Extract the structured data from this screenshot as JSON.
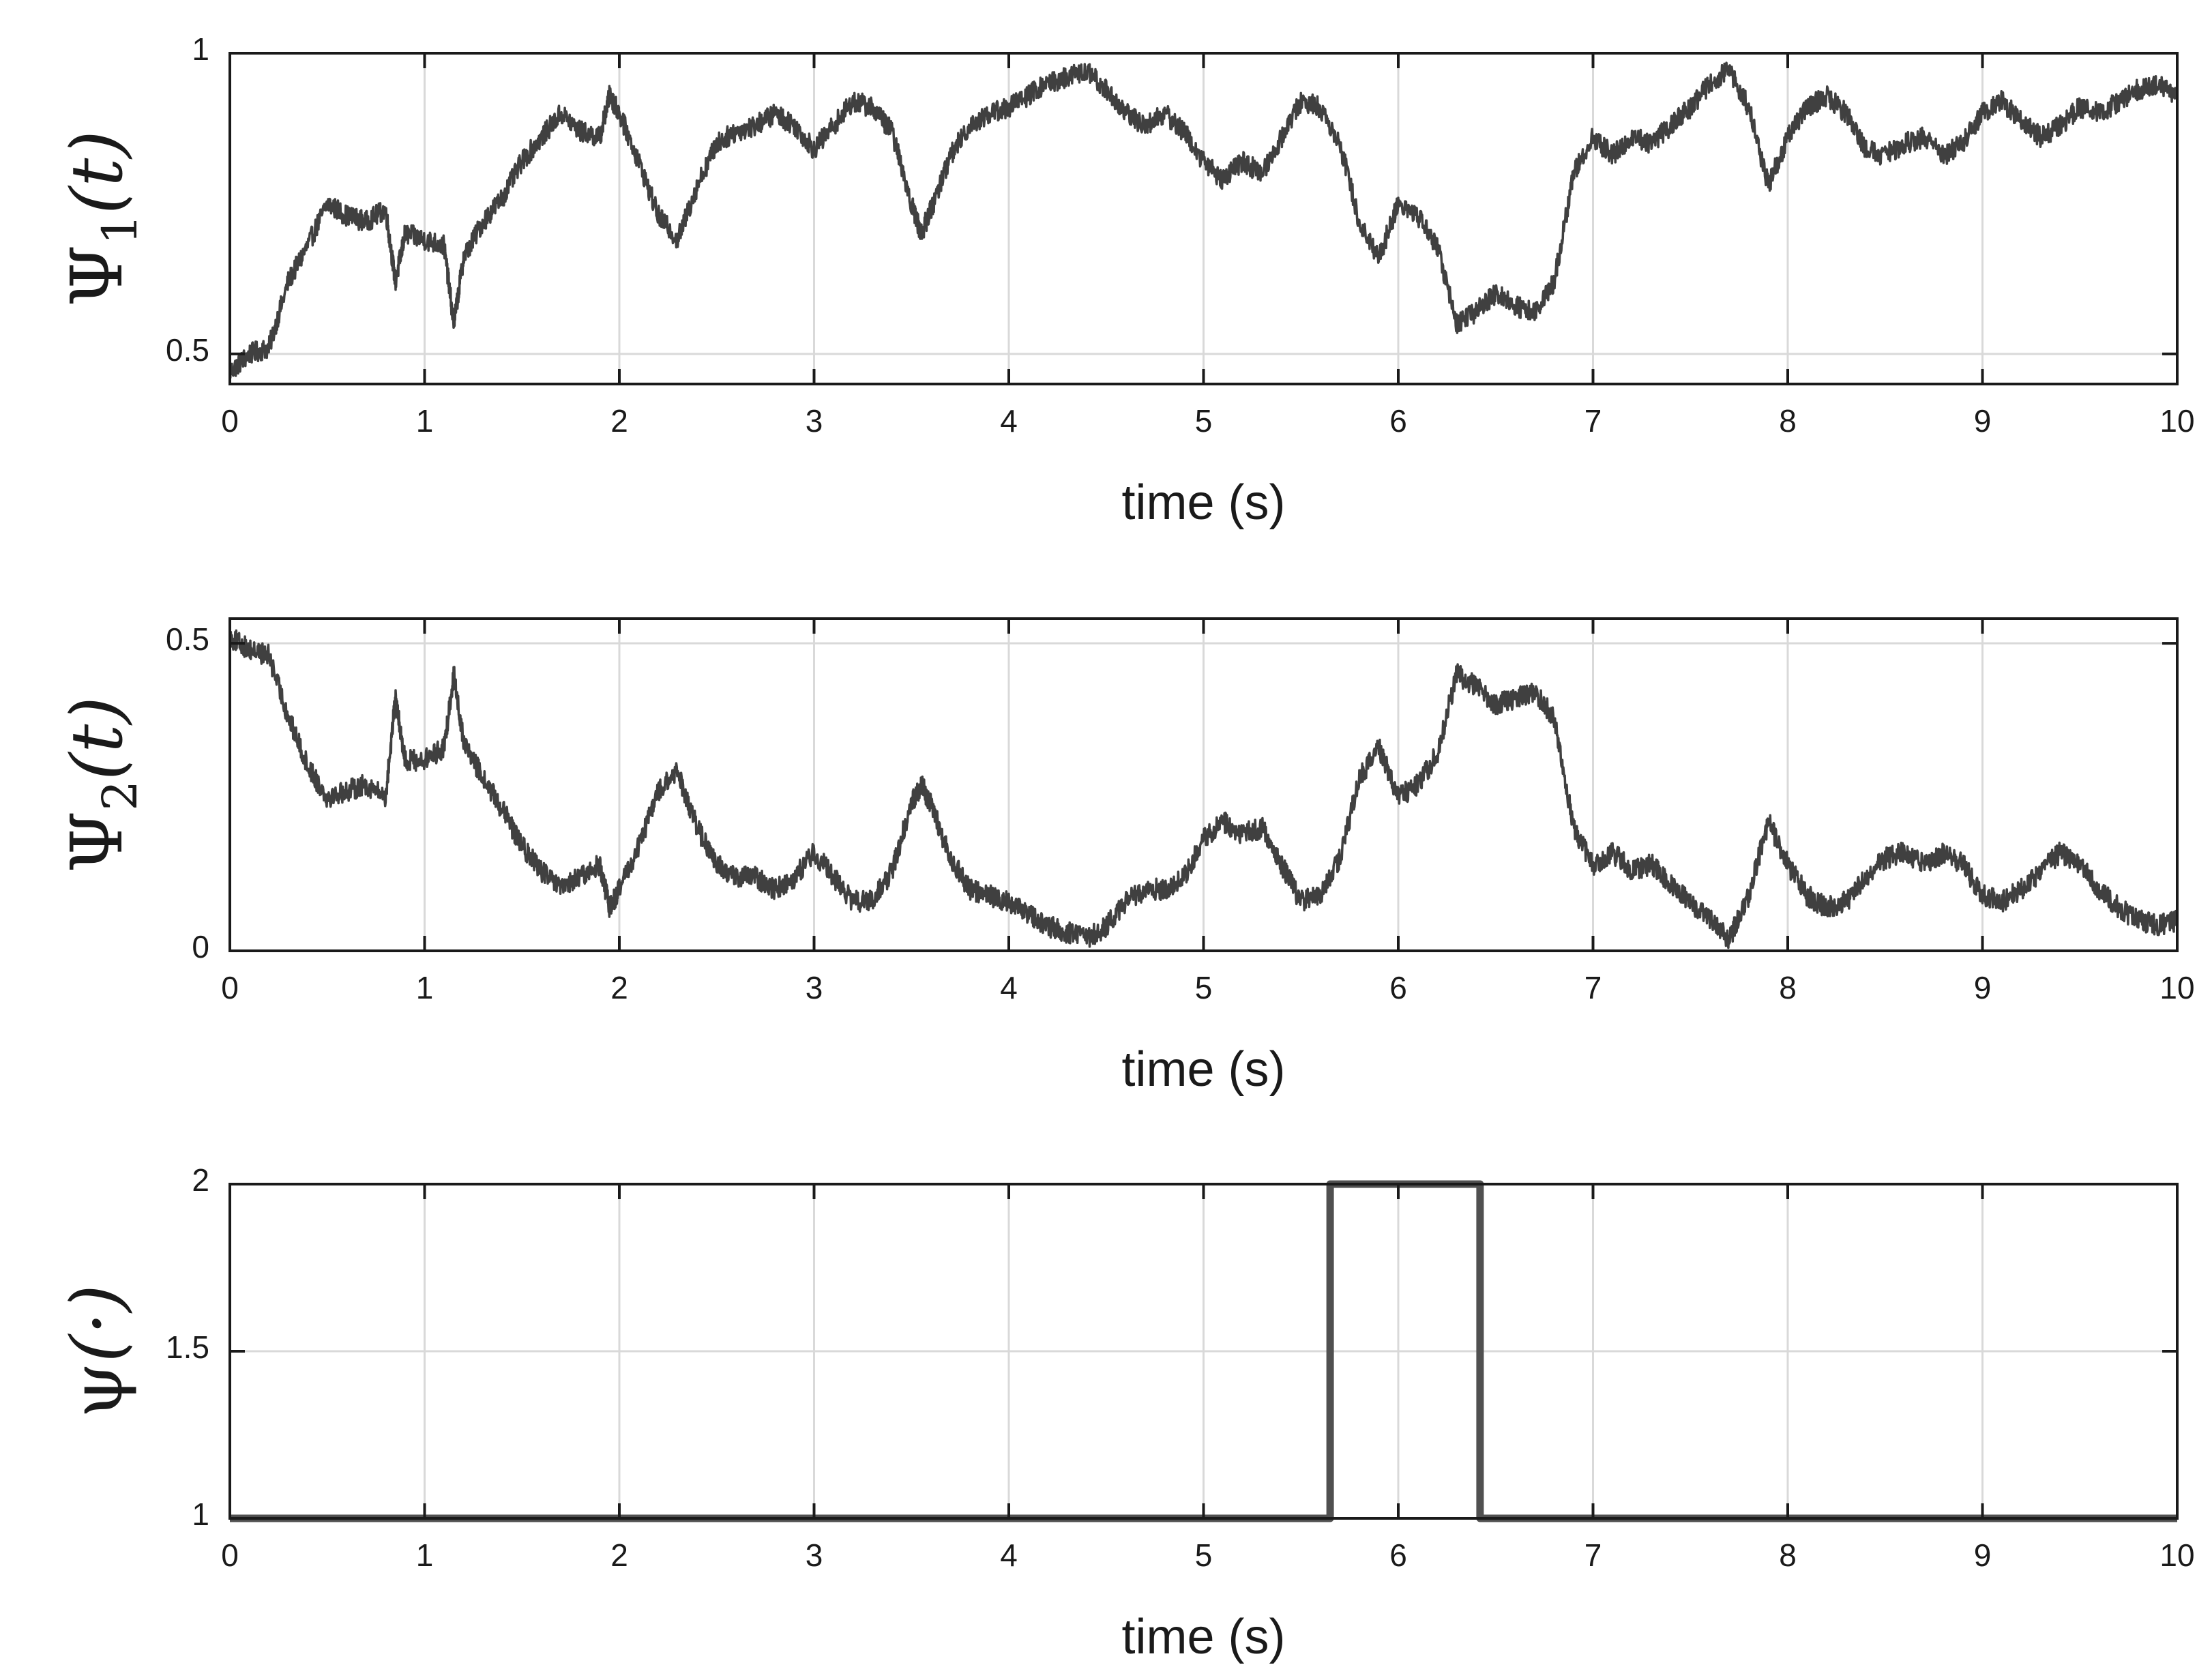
{
  "chart_data": [
    {
      "type": "line",
      "ylabel": "Ψ1(t)",
      "ylabel_main": "Ψ",
      "ylabel_sub": "1",
      "ylabel_arg": "(t)",
      "xlabel": "time (s)",
      "xlim": [
        0,
        10
      ],
      "ylim": [
        0.45,
        1
      ],
      "xticks": [
        "0",
        "1",
        "2",
        "3",
        "4",
        "5",
        "6",
        "7",
        "8",
        "9",
        "10"
      ],
      "yticks": [
        "0.5",
        "1"
      ],
      "ytick_values": [
        0.5,
        1
      ],
      "grid": true,
      "color": "#404040",
      "series": [
        {
          "x": [
            0,
            0.1,
            0.2,
            0.3,
            0.4,
            0.5,
            0.6,
            0.7,
            0.8,
            0.85,
            0.9,
            1.0,
            1.1,
            1.15,
            1.2,
            1.3,
            1.4,
            1.5,
            1.6,
            1.7,
            1.8,
            1.9,
            1.95,
            2.0,
            2.1,
            2.2,
            2.3,
            2.4,
            2.5,
            2.6,
            2.7,
            2.8,
            2.9,
            3.0,
            3.1,
            3.2,
            3.3,
            3.4,
            3.5,
            3.55,
            3.6,
            3.7,
            3.8,
            3.9,
            4.0,
            4.1,
            4.2,
            4.3,
            4.4,
            4.5,
            4.6,
            4.7,
            4.8,
            4.9,
            5.0,
            5.1,
            5.2,
            5.3,
            5.4,
            5.5,
            5.6,
            5.7,
            5.8,
            5.9,
            6.0,
            6.1,
            6.2,
            6.3,
            6.4,
            6.5,
            6.6,
            6.7,
            6.8,
            6.9,
            7.0,
            7.1,
            7.2,
            7.3,
            7.4,
            7.5,
            7.6,
            7.7,
            7.8,
            7.9,
            8.0,
            8.1,
            8.2,
            8.3,
            8.4,
            8.5,
            8.6,
            8.7,
            8.8,
            8.9,
            9.0,
            9.1,
            9.2,
            9.3,
            9.4,
            9.5,
            9.6,
            9.7,
            9.8,
            9.9,
            10.0
          ],
          "y": [
            0.47,
            0.5,
            0.51,
            0.62,
            0.68,
            0.75,
            0.73,
            0.72,
            0.74,
            0.62,
            0.7,
            0.69,
            0.68,
            0.55,
            0.66,
            0.72,
            0.76,
            0.82,
            0.86,
            0.9,
            0.87,
            0.86,
            0.93,
            0.9,
            0.82,
            0.73,
            0.69,
            0.78,
            0.85,
            0.87,
            0.88,
            0.9,
            0.88,
            0.84,
            0.88,
            0.92,
            0.91,
            0.87,
            0.75,
            0.7,
            0.74,
            0.83,
            0.88,
            0.9,
            0.91,
            0.93,
            0.95,
            0.96,
            0.97,
            0.94,
            0.9,
            0.88,
            0.9,
            0.87,
            0.82,
            0.79,
            0.82,
            0.8,
            0.86,
            0.92,
            0.91,
            0.85,
            0.72,
            0.66,
            0.75,
            0.73,
            0.68,
            0.55,
            0.57,
            0.6,
            0.58,
            0.57,
            0.62,
            0.8,
            0.86,
            0.83,
            0.86,
            0.85,
            0.88,
            0.91,
            0.95,
            0.97,
            0.91,
            0.78,
            0.86,
            0.91,
            0.93,
            0.9,
            0.84,
            0.83,
            0.85,
            0.86,
            0.83,
            0.85,
            0.9,
            0.92,
            0.89,
            0.86,
            0.88,
            0.91,
            0.9,
            0.92,
            0.94,
            0.95,
            0.93
          ]
        }
      ]
    },
    {
      "type": "line",
      "ylabel": "Ψ2(t)",
      "ylabel_main": "Ψ",
      "ylabel_sub": "2",
      "ylabel_arg": "(t)",
      "xlabel": "time (s)",
      "xlim": [
        0,
        10
      ],
      "ylim": [
        0,
        0.54
      ],
      "xticks": [
        "0",
        "1",
        "2",
        "3",
        "4",
        "5",
        "6",
        "7",
        "8",
        "9",
        "10"
      ],
      "yticks": [
        "0",
        "0.5"
      ],
      "ytick_values": [
        0,
        0.5
      ],
      "grid": true,
      "color": "#404040",
      "series": [
        {
          "x": [
            0,
            0.1,
            0.2,
            0.3,
            0.4,
            0.5,
            0.6,
            0.7,
            0.8,
            0.85,
            0.9,
            1.0,
            1.1,
            1.15,
            1.2,
            1.3,
            1.4,
            1.5,
            1.6,
            1.7,
            1.8,
            1.9,
            1.95,
            2.0,
            2.1,
            2.2,
            2.3,
            2.4,
            2.5,
            2.6,
            2.7,
            2.8,
            2.9,
            3.0,
            3.1,
            3.2,
            3.3,
            3.4,
            3.5,
            3.55,
            3.6,
            3.7,
            3.8,
            3.9,
            4.0,
            4.1,
            4.2,
            4.3,
            4.4,
            4.5,
            4.6,
            4.7,
            4.8,
            4.9,
            5.0,
            5.1,
            5.2,
            5.3,
            5.4,
            5.5,
            5.6,
            5.7,
            5.8,
            5.9,
            6.0,
            6.1,
            6.2,
            6.3,
            6.4,
            6.5,
            6.6,
            6.7,
            6.8,
            6.9,
            7.0,
            7.1,
            7.2,
            7.3,
            7.4,
            7.5,
            7.6,
            7.7,
            7.8,
            7.9,
            8.0,
            8.1,
            8.2,
            8.3,
            8.4,
            8.5,
            8.6,
            8.7,
            8.8,
            8.9,
            9.0,
            9.1,
            9.2,
            9.3,
            9.4,
            9.5,
            9.6,
            9.7,
            9.8,
            9.9,
            10.0
          ],
          "y": [
            0.51,
            0.49,
            0.48,
            0.38,
            0.3,
            0.25,
            0.26,
            0.27,
            0.25,
            0.41,
            0.31,
            0.31,
            0.33,
            0.45,
            0.34,
            0.28,
            0.23,
            0.17,
            0.13,
            0.1,
            0.12,
            0.14,
            0.07,
            0.1,
            0.17,
            0.26,
            0.29,
            0.2,
            0.14,
            0.12,
            0.12,
            0.1,
            0.12,
            0.16,
            0.12,
            0.08,
            0.08,
            0.13,
            0.24,
            0.27,
            0.24,
            0.15,
            0.1,
            0.09,
            0.08,
            0.06,
            0.04,
            0.03,
            0.02,
            0.04,
            0.08,
            0.1,
            0.1,
            0.12,
            0.18,
            0.21,
            0.19,
            0.2,
            0.14,
            0.08,
            0.09,
            0.15,
            0.28,
            0.33,
            0.25,
            0.27,
            0.32,
            0.45,
            0.43,
            0.4,
            0.41,
            0.42,
            0.38,
            0.2,
            0.14,
            0.16,
            0.13,
            0.14,
            0.11,
            0.08,
            0.05,
            0.02,
            0.09,
            0.21,
            0.14,
            0.09,
            0.07,
            0.08,
            0.12,
            0.15,
            0.16,
            0.14,
            0.16,
            0.14,
            0.09,
            0.08,
            0.1,
            0.13,
            0.16,
            0.14,
            0.1,
            0.07,
            0.05,
            0.04,
            0.05
          ]
        }
      ]
    },
    {
      "type": "line",
      "ylabel": "ψ(·)",
      "ylabel_main": "ψ",
      "ylabel_sub": "",
      "ylabel_arg": "(·)",
      "xlabel": "time (s)",
      "xlim": [
        0,
        10
      ],
      "ylim": [
        1,
        2
      ],
      "xticks": [
        "0",
        "1",
        "2",
        "3",
        "4",
        "5",
        "6",
        "7",
        "8",
        "9",
        "10"
      ],
      "yticks": [
        "1",
        "1.5",
        "2"
      ],
      "ytick_values": [
        1,
        1.5,
        2
      ],
      "grid": true,
      "color": "#505050",
      "series": [
        {
          "x": [
            0,
            5.65,
            5.65,
            6.42,
            6.42,
            10
          ],
          "y": [
            1,
            1,
            2,
            2,
            1,
            1
          ]
        }
      ]
    }
  ]
}
